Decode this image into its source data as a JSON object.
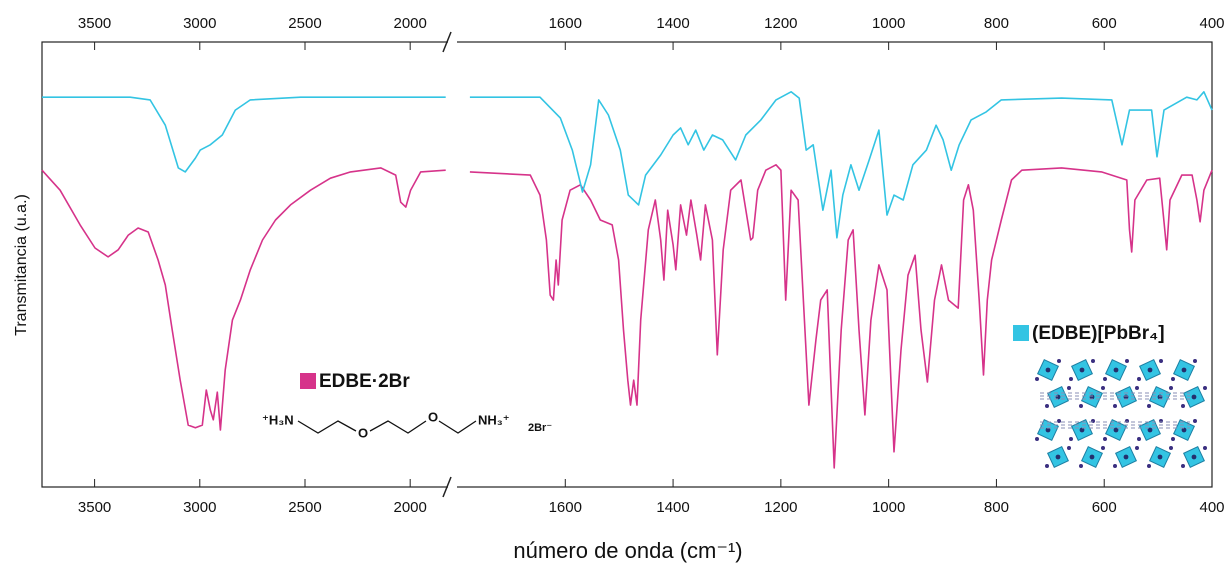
{
  "chart_data": {
    "type": "line",
    "y_label": "Transmitancia (u.a.)",
    "x_label": "número de onda (cm⁻¹)",
    "ylim": [
      0,
      100
    ],
    "panels": [
      {
        "xlim": [
          3750,
          1825
        ],
        "xticks": [
          3500,
          3000,
          2500,
          2000
        ]
      },
      {
        "xlim": [
          1800,
          400
        ],
        "xticks": [
          1600,
          1400,
          1200,
          1000,
          800,
          600,
          400
        ]
      }
    ],
    "series": [
      {
        "name": "EDBE·2Br",
        "color": "#d6338a",
        "x": [
          3750,
          3664,
          3569,
          3498,
          3436,
          3388,
          3340,
          3293,
          3245,
          3198,
          3164,
          3131,
          3093,
          3055,
          3021,
          2988,
          2969,
          2950,
          2936,
          2917,
          2902,
          2879,
          2845,
          2807,
          2760,
          2702,
          2640,
          2569,
          2474,
          2379,
          2283,
          2140,
          2069,
          2045,
          2021,
          1998,
          1950,
          1831,
          1812,
          1777,
          1665,
          1647,
          1635,
          1628,
          1622,
          1617,
          1613,
          1606,
          1591,
          1572,
          1553,
          1535,
          1513,
          1501,
          1492,
          1484,
          1479,
          1473,
          1467,
          1460,
          1446,
          1433,
          1423,
          1417,
          1410,
          1400,
          1395,
          1386,
          1375,
          1367,
          1356,
          1349,
          1340,
          1327,
          1318,
          1307,
          1293,
          1274,
          1256,
          1252,
          1243,
          1228,
          1209,
          1200,
          1191,
          1181,
          1168,
          1148,
          1135,
          1126,
          1114,
          1101,
          1088,
          1075,
          1066,
          1055,
          1044,
          1033,
          1018,
          1003,
          990,
          977,
          964,
          951,
          940,
          928,
          915,
          902,
          889,
          871,
          861,
          852,
          843,
          832,
          824,
          817,
          809,
          791,
          772,
          753,
          679,
          605,
          558,
          553,
          549,
          543,
          521,
          497,
          489,
          484,
          478,
          456,
          437,
          428,
          422,
          415,
          400
        ],
        "values": [
          71.2,
          66.7,
          58.9,
          53.7,
          51.7,
          53.3,
          56.6,
          58.2,
          57.3,
          51.0,
          45.4,
          35.3,
          24.0,
          13.9,
          13.3,
          13.9,
          21.8,
          17.3,
          15.1,
          21.3,
          12.8,
          26.3,
          37.5,
          42.0,
          48.8,
          55.5,
          60.0,
          63.4,
          66.7,
          69.4,
          70.8,
          71.7,
          70.1,
          64.0,
          62.9,
          66.7,
          70.8,
          71.2,
          null,
          70.8,
          70.1,
          65.6,
          55.5,
          43.1,
          42.0,
          51.0,
          45.4,
          60.0,
          66.7,
          67.9,
          64.5,
          60.0,
          58.9,
          51.0,
          35.3,
          24.0,
          18.4,
          24.0,
          18.4,
          37.5,
          57.8,
          64.5,
          55.5,
          46.5,
          62.2,
          54.4,
          48.8,
          63.4,
          56.6,
          64.5,
          56.6,
          51.0,
          63.4,
          55.5,
          29.7,
          53.3,
          66.7,
          69.0,
          55.5,
          56.0,
          66.7,
          71.2,
          72.4,
          71.2,
          42.0,
          66.7,
          64.5,
          18.4,
          33.0,
          42.0,
          44.3,
          4.3,
          35.3,
          55.5,
          57.8,
          35.3,
          16.2,
          37.5,
          49.9,
          44.3,
          7.9,
          30.8,
          47.6,
          52.1,
          35.3,
          23.6,
          42.0,
          49.9,
          42.0,
          40.2,
          64.5,
          67.9,
          62.2,
          42.0,
          25.2,
          42.0,
          51.0,
          60.0,
          69.0,
          71.2,
          71.7,
          70.8,
          69.0,
          57.8,
          52.8,
          64.5,
          69.0,
          69.4,
          59.6,
          53.3,
          64.5,
          70.1,
          70.1,
          64.5,
          59.6,
          66.7,
          71.2
        ]
      },
      {
        "name": "(EDBE)[PbBr₄]",
        "color": "#33c4e3",
        "x": [
          3750,
          3331,
          3236,
          3164,
          3102,
          3069,
          3021,
          2998,
          2950,
          2893,
          2831,
          2760,
          2521,
          1831,
          1812,
          1777,
          1647,
          1609,
          1587,
          1568,
          1553,
          1538,
          1520,
          1498,
          1483,
          1464,
          1451,
          1423,
          1400,
          1386,
          1372,
          1358,
          1343,
          1327,
          1308,
          1284,
          1265,
          1237,
          1209,
          1181,
          1166,
          1153,
          1140,
          1122,
          1107,
          1096,
          1085,
          1070,
          1055,
          1036,
          1018,
          1003,
          990,
          973,
          955,
          930,
          912,
          899,
          884,
          869,
          847,
          819,
          791,
          679,
          586,
          567,
          553,
          512,
          502,
          489,
          447,
          428,
          415,
          400
        ],
        "values": [
          87.6,
          87.6,
          87.0,
          81.3,
          71.7,
          70.8,
          73.9,
          75.7,
          76.9,
          79.1,
          84.7,
          87.0,
          87.6,
          87.6,
          null,
          87.6,
          87.6,
          82.9,
          75.7,
          66.3,
          72.4,
          87.0,
          83.6,
          75.7,
          65.6,
          63.4,
          70.1,
          74.6,
          79.1,
          80.7,
          76.9,
          80.2,
          75.7,
          79.1,
          78.0,
          73.5,
          79.1,
          82.5,
          87.0,
          88.8,
          87.4,
          75.7,
          76.9,
          62.2,
          71.2,
          56.0,
          65.6,
          72.4,
          66.7,
          73.5,
          80.2,
          61.1,
          65.6,
          64.5,
          72.4,
          75.7,
          81.3,
          78.0,
          71.2,
          76.9,
          82.5,
          84.3,
          87.0,
          87.4,
          87.0,
          76.9,
          84.7,
          84.7,
          74.2,
          84.7,
          87.6,
          87.0,
          88.8,
          84.7
        ]
      }
    ],
    "annotations": [
      "⁺H₃N",
      "O",
      "O",
      "NH₃⁺",
      "2Br⁻"
    ]
  }
}
